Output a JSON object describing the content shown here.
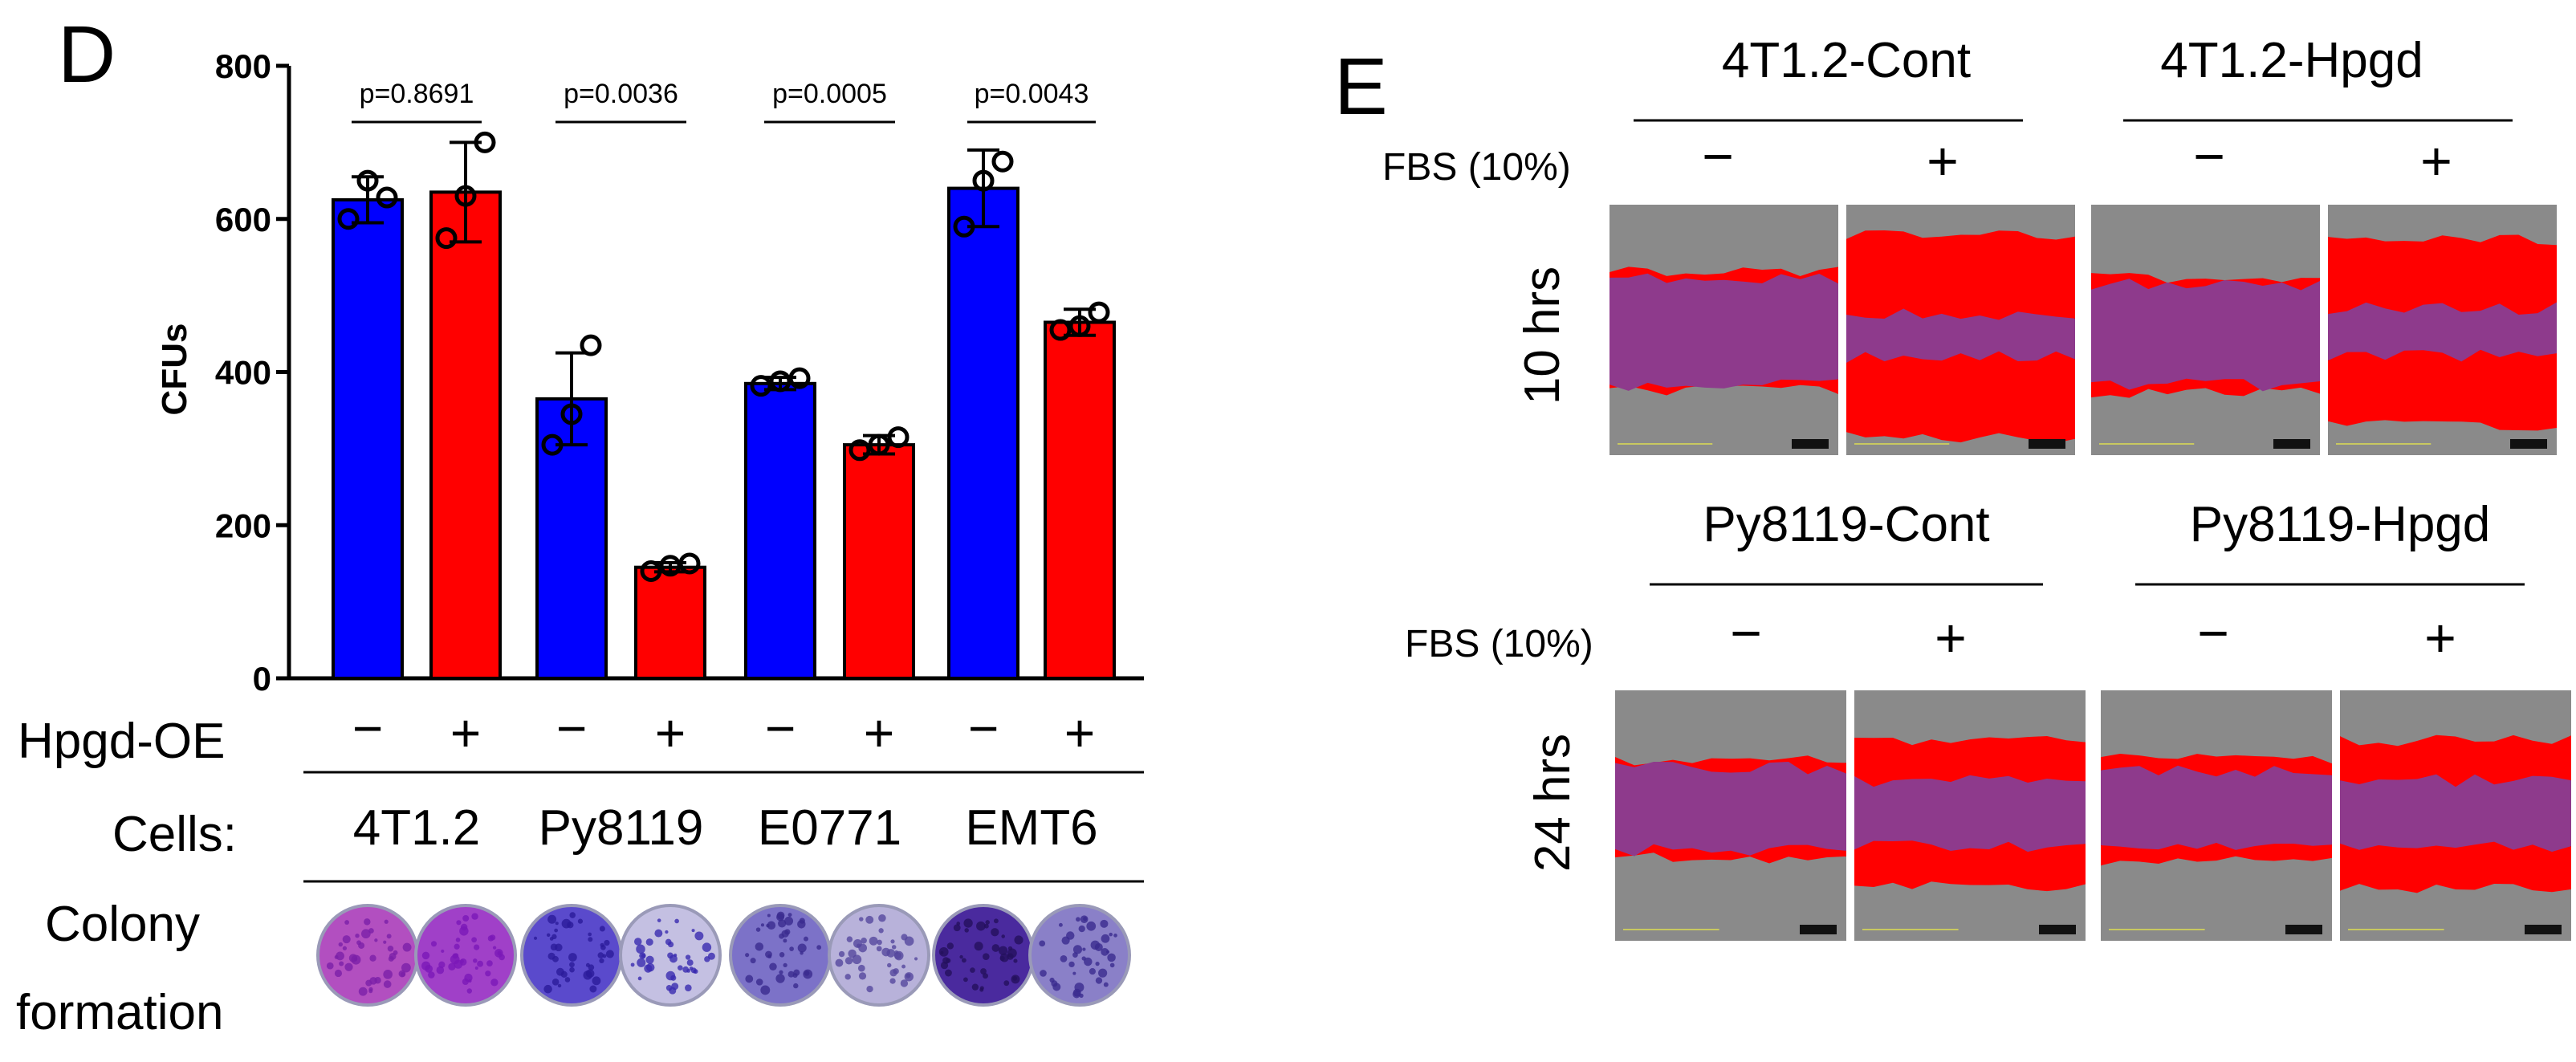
{
  "panel_d": {
    "letter": "D",
    "row_hpgd_label": "Hpgd-OE",
    "row_cells_label": "Cells:",
    "row_colony_label_1": "Colony",
    "row_colony_label_2": "formation",
    "cell_lines": [
      "4T1.2",
      "Py8119",
      "E0771",
      "EMT6"
    ],
    "pvalues": [
      "p=0.8691",
      "p=0.0036",
      "p=0.0005",
      "p=0.0043"
    ],
    "minus": "−",
    "plus": "+"
  },
  "panel_e": {
    "letter": "E",
    "fbs_label": "FBS (10%)",
    "minus": "−",
    "plus": "+",
    "top_groups": [
      "4T1.2-Cont",
      "4T1.2-Hpgd"
    ],
    "bottom_groups": [
      "Py8119-Cont",
      "Py8119-Hpgd"
    ],
    "time_labels": [
      "10 hrs",
      "24 hrs"
    ]
  },
  "colors": {
    "blue": "#0000FF",
    "red": "#FF0000",
    "purple": "#8E3A8C",
    "gray": "#8A8A8A"
  },
  "chart_data": {
    "type": "bar",
    "ylabel": "CFUs",
    "ylim": [
      0,
      800
    ],
    "yticks": [
      0,
      200,
      400,
      600,
      800
    ],
    "categories": [
      "4T1.2",
      "Py8119",
      "E0771",
      "EMT6"
    ],
    "series": [
      {
        "values": [
          625,
          365,
          385,
          640
        ],
        "errors": [
          30,
          60,
          8,
          50
        ],
        "points": [
          [
            600,
            650,
            628
          ],
          [
            305,
            345,
            435
          ],
          [
            382,
            388,
            392
          ],
          [
            590,
            650,
            675
          ]
        ]
      },
      {
        "values": [
          635,
          145,
          305,
          465
        ],
        "errors": [
          65,
          6,
          12,
          17
        ],
        "points": [
          [
            575,
            630,
            700
          ],
          [
            140,
            147,
            150
          ],
          [
            298,
            305,
            315
          ],
          [
            455,
            460,
            478
          ]
        ]
      }
    ]
  }
}
